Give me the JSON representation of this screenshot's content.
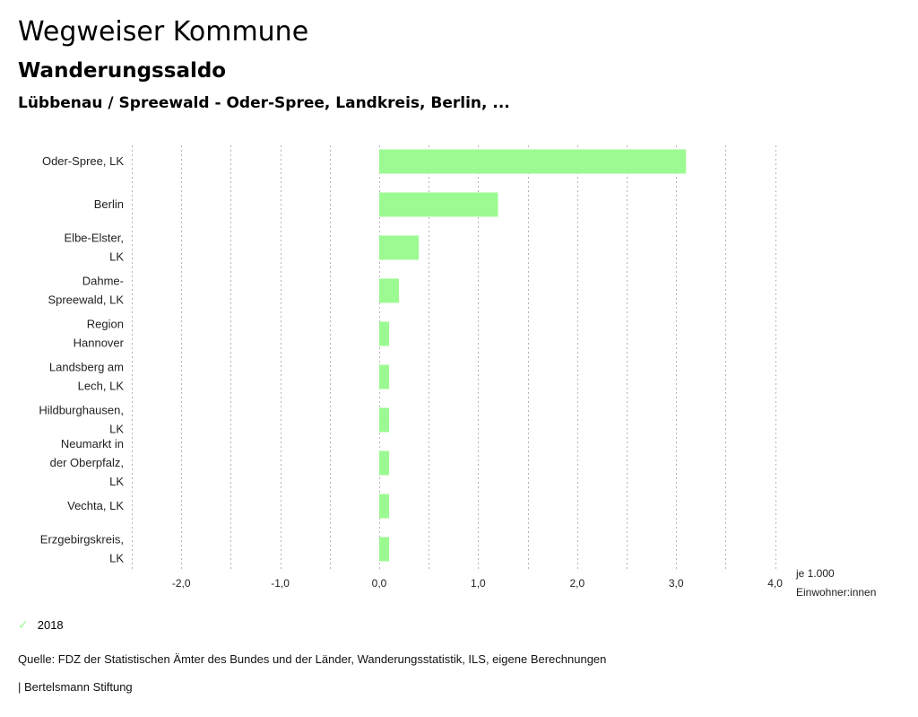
{
  "header": {
    "title": "Wegweiser Kommune",
    "subtitle": "Wanderungssaldo",
    "context": "Lübbenau / Spreewald - Oder-Spree, Landkreis, Berlin, ..."
  },
  "legend": {
    "items": [
      {
        "label": "2018",
        "color": "#9cfa92",
        "icon": "check-icon"
      }
    ]
  },
  "footer": {
    "source": "Quelle: FDZ der Statistischen Ämter des Bundes und der Länder, Wanderungsstatistik, ILS, eigene Berechnungen",
    "credit": "| Bertelsmann Stiftung"
  },
  "chart_data": {
    "type": "bar",
    "orientation": "horizontal",
    "title": "Wanderungssaldo",
    "xlabel": "je 1.000 Einwohner:innen",
    "xlabel_lines": [
      "je 1.000",
      "Einwohner:innen"
    ],
    "ylabel": "",
    "xlim": [
      -2.5,
      4.0
    ],
    "grid": true,
    "legend_position": "bottom-left",
    "tick_values": [
      -2.0,
      -1.0,
      0.0,
      1.0,
      2.0,
      3.0,
      4.0
    ],
    "tick_labels": [
      "-2,0",
      "-1,0",
      "0,0",
      "1,0",
      "2,0",
      "3,0",
      "4,0"
    ],
    "categories": [
      [
        "Oder-Spree, LK"
      ],
      [
        "Berlin"
      ],
      [
        "Elbe-Elster,",
        "LK"
      ],
      [
        "Dahme-",
        "Spreewald, LK"
      ],
      [
        "Region",
        "Hannover"
      ],
      [
        "Landsberg am",
        "Lech, LK"
      ],
      [
        "Hildburghausen,",
        "LK"
      ],
      [
        "Neumarkt in",
        "der Oberpfalz,",
        "LK"
      ],
      [
        "Vechta, LK"
      ],
      [
        "Erzgebirgskreis,",
        "LK"
      ]
    ],
    "series": [
      {
        "name": "2018",
        "color": "#9cfa92",
        "values": [
          3.1,
          1.2,
          0.4,
          0.2,
          0.1,
          0.1,
          0.1,
          0.1,
          0.1,
          0.1
        ]
      }
    ]
  }
}
